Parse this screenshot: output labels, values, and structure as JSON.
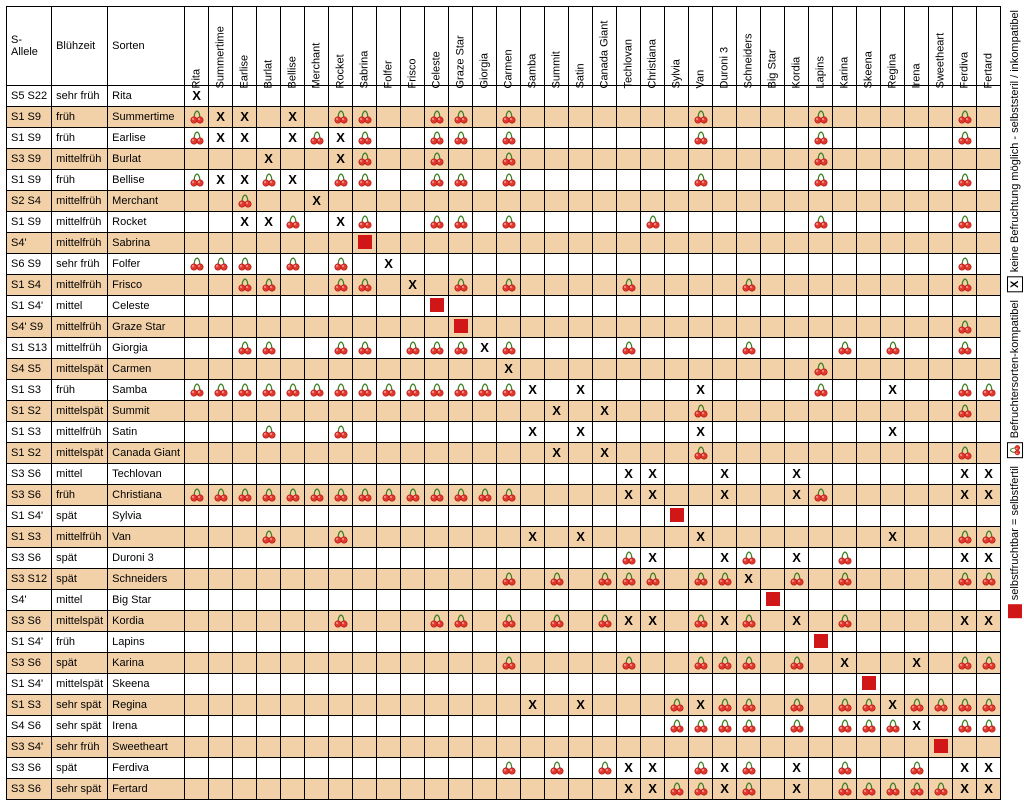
{
  "meta": {
    "background_color": "#ffffff",
    "shade_color": "#f3d1a8",
    "border_color": "#000000",
    "self_color": "#d01616",
    "cherry_color": "#e23b2e",
    "cherry_stem": "#3a7d1f",
    "font_family": "Arial",
    "font_size_pt": 8,
    "header_rotation_deg": -90
  },
  "headers": {
    "allele": "S-Allele",
    "bloom": "Blühzeit",
    "sort": "Sorten"
  },
  "columns": [
    "Rita",
    "Summertime",
    "Earlise",
    "Burlat",
    "Bellise",
    "Merchant",
    "Rocket",
    "Sabrina",
    "Folfer",
    "Frisco",
    "Celeste",
    "Graze Star",
    "Giorgia",
    "Carmen",
    "Samba",
    "Summit",
    "Satin",
    "Canada Giant",
    "Techlovan",
    "Christiana",
    "Sylvia",
    "Van",
    "Duroni 3",
    "Schneiders",
    "Big Star",
    "Kordia",
    "Lapins",
    "Karina",
    "Skeena",
    "Regina",
    "Irena",
    "Sweetheart",
    "Ferdiva",
    "Fertard"
  ],
  "rows": [
    {
      "allele": "S5 S22",
      "bloom": "sehr früh",
      "sort": "Rita",
      "shade": false,
      "cells": [
        "X",
        "",
        "",
        "",
        "",
        "",
        "",
        "",
        "",
        "",
        "",
        "",
        "",
        "",
        "",
        "",
        "",
        "",
        "",
        "",
        "",
        "",
        "",
        "",
        "",
        "",
        "",
        "",
        "",
        "",
        "",
        "",
        "",
        ""
      ]
    },
    {
      "allele": "S1 S9",
      "bloom": "früh",
      "sort": "Summertime",
      "shade": true,
      "cells": [
        "C",
        "X",
        "X",
        "",
        "X",
        "",
        "C",
        "C",
        "",
        "",
        "C",
        "C",
        "",
        "C",
        "",
        "",
        "",
        "",
        "",
        "",
        "",
        "C",
        "",
        "",
        "",
        "",
        "C",
        "",
        "",
        "",
        "",
        "",
        "C",
        ""
      ]
    },
    {
      "allele": "S1 S9",
      "bloom": "früh",
      "sort": "Earlise",
      "shade": false,
      "cells": [
        "C",
        "X",
        "X",
        "",
        "X",
        "C",
        "X",
        "C",
        "",
        "",
        "C",
        "C",
        "",
        "C",
        "",
        "",
        "",
        "",
        "",
        "",
        "",
        "C",
        "",
        "",
        "",
        "",
        "C",
        "",
        "",
        "",
        "",
        "",
        "C",
        ""
      ]
    },
    {
      "allele": "S3 S9",
      "bloom": "mittelfrüh",
      "sort": "Burlat",
      "shade": true,
      "cells": [
        "",
        "",
        "",
        "X",
        "",
        "",
        "X",
        "C",
        "",
        "",
        "C",
        "",
        "",
        "C",
        "",
        "",
        "",
        "",
        "",
        "",
        "",
        "",
        "",
        "",
        "",
        "",
        "C",
        "",
        "",
        "",
        "",
        "",
        "",
        ""
      ]
    },
    {
      "allele": "S1 S9",
      "bloom": "früh",
      "sort": "Bellise",
      "shade": false,
      "cells": [
        "C",
        "X",
        "X",
        "C",
        "X",
        "",
        "C",
        "C",
        "",
        "",
        "C",
        "C",
        "",
        "C",
        "",
        "",
        "",
        "",
        "",
        "",
        "",
        "C",
        "",
        "",
        "",
        "",
        "C",
        "",
        "",
        "",
        "",
        "",
        "C",
        ""
      ]
    },
    {
      "allele": "S2 S4",
      "bloom": "mittelfrüh",
      "sort": "Merchant",
      "shade": true,
      "cells": [
        "",
        "",
        "C",
        "",
        "",
        "X",
        "",
        "",
        "",
        "",
        "",
        "",
        "",
        "",
        "",
        "",
        "",
        "",
        "",
        "",
        "",
        "",
        "",
        "",
        "",
        "",
        "",
        "",
        "",
        "",
        "",
        "",
        "",
        ""
      ]
    },
    {
      "allele": "S1 S9",
      "bloom": "mittelfrüh",
      "sort": "Rocket",
      "shade": false,
      "cells": [
        "",
        "",
        "X",
        "X",
        "C",
        "",
        "X",
        "C",
        "",
        "",
        "C",
        "C",
        "",
        "C",
        "",
        "",
        "",
        "",
        "",
        "C",
        "",
        "",
        "",
        "",
        "",
        "",
        "C",
        "",
        "",
        "",
        "",
        "",
        "C",
        ""
      ]
    },
    {
      "allele": "S4'",
      "bloom": "mittelfrüh",
      "sort": "Sabrina",
      "shade": true,
      "cells": [
        "",
        "",
        "",
        "",
        "",
        "",
        "",
        "S",
        "",
        "",
        "",
        "",
        "",
        "",
        "",
        "",
        "",
        "",
        "",
        "",
        "",
        "",
        "",
        "",
        "",
        "",
        "",
        "",
        "",
        "",
        "",
        "",
        "",
        ""
      ]
    },
    {
      "allele": "S6 S9",
      "bloom": "sehr früh",
      "sort": "Folfer",
      "shade": false,
      "cells": [
        "C",
        "C",
        "C",
        "",
        "C",
        "",
        "C",
        "",
        "X",
        "",
        "",
        "",
        "",
        "",
        "",
        "",
        "",
        "",
        "",
        "",
        "",
        "",
        "",
        "",
        "",
        "",
        "",
        "",
        "",
        "",
        "",
        "",
        "C",
        ""
      ]
    },
    {
      "allele": "S1 S4",
      "bloom": "mittelfrüh",
      "sort": "Frisco",
      "shade": true,
      "cells": [
        "",
        "",
        "C",
        "C",
        "",
        "",
        "C",
        "C",
        "",
        "X",
        "",
        "C",
        "",
        "C",
        "",
        "",
        "",
        "",
        "C",
        "",
        "",
        "",
        "",
        "C",
        "",
        "",
        "",
        "",
        "",
        "",
        "",
        "",
        "C",
        ""
      ]
    },
    {
      "allele": "S1 S4'",
      "bloom": "mittel",
      "sort": "Celeste",
      "shade": false,
      "cells": [
        "",
        "",
        "",
        "",
        "",
        "",
        "",
        "",
        "",
        "",
        "S",
        "",
        "",
        "",
        "",
        "",
        "",
        "",
        "",
        "",
        "",
        "",
        "",
        "",
        "",
        "",
        "",
        "",
        "",
        "",
        "",
        "",
        "",
        ""
      ]
    },
    {
      "allele": "S4' S9",
      "bloom": "mittelfrüh",
      "sort": "Graze Star",
      "shade": true,
      "cells": [
        "",
        "",
        "",
        "",
        "",
        "",
        "",
        "",
        "",
        "",
        "",
        "S",
        "",
        "",
        "",
        "",
        "",
        "",
        "",
        "",
        "",
        "",
        "",
        "",
        "",
        "",
        "",
        "",
        "",
        "",
        "",
        "",
        "C",
        ""
      ]
    },
    {
      "allele": "S1 S13",
      "bloom": "mittelfrüh",
      "sort": "Giorgia",
      "shade": false,
      "cells": [
        "",
        "",
        "C",
        "C",
        "",
        "",
        "C",
        "C",
        "",
        "C",
        "C",
        "C",
        "X",
        "C",
        "",
        "",
        "",
        "",
        "C",
        "",
        "",
        "",
        "",
        "C",
        "",
        "",
        "",
        "C",
        "",
        "C",
        "",
        "",
        "C",
        ""
      ]
    },
    {
      "allele": "S4 S5",
      "bloom": "mittelspät",
      "sort": "Carmen",
      "shade": true,
      "cells": [
        "",
        "",
        "",
        "",
        "",
        "",
        "",
        "",
        "",
        "",
        "",
        "",
        "",
        "X",
        "",
        "",
        "",
        "",
        "",
        "",
        "",
        "",
        "",
        "",
        "",
        "",
        "C",
        "",
        "",
        "",
        "",
        "",
        "",
        ""
      ]
    },
    {
      "allele": "S1 S3",
      "bloom": "früh",
      "sort": "Samba",
      "shade": false,
      "cells": [
        "C",
        "C",
        "C",
        "C",
        "C",
        "C",
        "C",
        "C",
        "C",
        "C",
        "C",
        "C",
        "C",
        "C",
        "X",
        "",
        "X",
        "",
        "",
        "",
        "",
        "X",
        "",
        "",
        "",
        "",
        "C",
        "",
        "",
        "X",
        "",
        "",
        "C",
        "C"
      ]
    },
    {
      "allele": "S1 S2",
      "bloom": "mittelspät",
      "sort": "Summit",
      "shade": true,
      "cells": [
        "",
        "",
        "",
        "",
        "",
        "",
        "",
        "",
        "",
        "",
        "",
        "",
        "",
        "",
        "",
        "X",
        "",
        "X",
        "",
        "",
        "",
        "C",
        "",
        "",
        "",
        "",
        "",
        "",
        "",
        "",
        "",
        "",
        "C",
        ""
      ]
    },
    {
      "allele": "S1 S3",
      "bloom": "mittelfrüh",
      "sort": "Satin",
      "shade": false,
      "cells": [
        "",
        "",
        "",
        "C",
        "",
        "",
        "C",
        "",
        "",
        "",
        "",
        "",
        "",
        "",
        "X",
        "",
        "X",
        "",
        "",
        "",
        "",
        "X",
        "",
        "",
        "",
        "",
        "",
        "",
        "",
        "X",
        "",
        "",
        "",
        ""
      ]
    },
    {
      "allele": "S1 S2",
      "bloom": "mittelspät",
      "sort": "Canada Giant",
      "shade": true,
      "cells": [
        "",
        "",
        "",
        "",
        "",
        "",
        "",
        "",
        "",
        "",
        "",
        "",
        "",
        "",
        "",
        "X",
        "",
        "X",
        "",
        "",
        "",
        "C",
        "",
        "",
        "",
        "",
        "",
        "",
        "",
        "",
        "",
        "",
        "C",
        ""
      ]
    },
    {
      "allele": "S3 S6",
      "bloom": "mittel",
      "sort": "Techlovan",
      "shade": false,
      "cells": [
        "",
        "",
        "",
        "",
        "",
        "",
        "",
        "",
        "",
        "",
        "",
        "",
        "",
        "",
        "",
        "",
        "",
        "",
        "X",
        "X",
        "",
        "",
        "X",
        "",
        "",
        "X",
        "",
        "",
        "",
        "",
        "",
        "",
        "X",
        "X"
      ]
    },
    {
      "allele": "S3 S6",
      "bloom": "früh",
      "sort": "Christiana",
      "shade": true,
      "cells": [
        "C",
        "C",
        "C",
        "C",
        "C",
        "C",
        "C",
        "C",
        "C",
        "C",
        "C",
        "C",
        "C",
        "C",
        "",
        "",
        "",
        "",
        "X",
        "X",
        "",
        "",
        "X",
        "",
        "",
        "X",
        "C",
        "",
        "",
        "",
        "",
        "",
        "X",
        "X"
      ]
    },
    {
      "allele": "S1 S4'",
      "bloom": "spät",
      "sort": "Sylvia",
      "shade": false,
      "cells": [
        "",
        "",
        "",
        "",
        "",
        "",
        "",
        "",
        "",
        "",
        "",
        "",
        "",
        "",
        "",
        "",
        "",
        "",
        "",
        "",
        "S",
        "",
        "",
        "",
        "",
        "",
        "",
        "",
        "",
        "",
        "",
        "",
        "",
        ""
      ]
    },
    {
      "allele": "S1 S3",
      "bloom": "mittelfrüh",
      "sort": "Van",
      "shade": true,
      "cells": [
        "",
        "",
        "",
        "C",
        "",
        "",
        "C",
        "",
        "",
        "",
        "",
        "",
        "",
        "",
        "X",
        "",
        "X",
        "",
        "",
        "",
        "",
        "X",
        "",
        "",
        "",
        "",
        "",
        "",
        "",
        "X",
        "",
        "",
        "C",
        "C"
      ]
    },
    {
      "allele": "S3 S6",
      "bloom": "spät",
      "sort": "Duroni 3",
      "shade": false,
      "cells": [
        "",
        "",
        "",
        "",
        "",
        "",
        "",
        "",
        "",
        "",
        "",
        "",
        "",
        "",
        "",
        "",
        "",
        "",
        "C",
        "X",
        "",
        "",
        "X",
        "C",
        "",
        "X",
        "",
        "C",
        "",
        "",
        "",
        "",
        "X",
        "X"
      ]
    },
    {
      "allele": "S3 S12",
      "bloom": "spät",
      "sort": "Schneiders",
      "shade": true,
      "cells": [
        "",
        "",
        "",
        "",
        "",
        "",
        "",
        "",
        "",
        "",
        "",
        "",
        "",
        "C",
        "",
        "C",
        "",
        "C",
        "C",
        "C",
        "",
        "C",
        "C",
        "X",
        "",
        "C",
        "",
        "C",
        "",
        "",
        "",
        "",
        "C",
        "C"
      ]
    },
    {
      "allele": "S4'",
      "bloom": "mittel",
      "sort": "Big Star",
      "shade": false,
      "cells": [
        "",
        "",
        "",
        "",
        "",
        "",
        "",
        "",
        "",
        "",
        "",
        "",
        "",
        "",
        "",
        "",
        "",
        "",
        "",
        "",
        "",
        "",
        "",
        "",
        "S",
        "",
        "",
        "",
        "",
        "",
        "",
        "",
        "",
        ""
      ]
    },
    {
      "allele": "S3 S6",
      "bloom": "mittelspät",
      "sort": "Kordia",
      "shade": true,
      "cells": [
        "",
        "",
        "",
        "",
        "",
        "",
        "C",
        "",
        "",
        "",
        "C",
        "C",
        "",
        "C",
        "",
        "C",
        "",
        "C",
        "X",
        "X",
        "",
        "C",
        "X",
        "C",
        "",
        "X",
        "",
        "C",
        "",
        "",
        "",
        "",
        "X",
        "X"
      ]
    },
    {
      "allele": "S1 S4'",
      "bloom": "früh",
      "sort": "Lapins",
      "shade": false,
      "cells": [
        "",
        "",
        "",
        "",
        "",
        "",
        "",
        "",
        "",
        "",
        "",
        "",
        "",
        "",
        "",
        "",
        "",
        "",
        "",
        "",
        "",
        "",
        "",
        "",
        "",
        "",
        "S",
        "",
        "",
        "",
        "",
        "",
        "",
        ""
      ]
    },
    {
      "allele": "S3 S6",
      "bloom": "spät",
      "sort": "Karina",
      "shade": true,
      "cells": [
        "",
        "",
        "",
        "",
        "",
        "",
        "",
        "",
        "",
        "",
        "",
        "",
        "",
        "C",
        "",
        "",
        "",
        "",
        "C",
        "",
        "",
        "C",
        "C",
        "C",
        "",
        "C",
        "",
        "X",
        "",
        "",
        "X",
        "",
        "C",
        "C"
      ]
    },
    {
      "allele": "S1 S4'",
      "bloom": "mittelspät",
      "sort": "Skeena",
      "shade": false,
      "cells": [
        "",
        "",
        "",
        "",
        "",
        "",
        "",
        "",
        "",
        "",
        "",
        "",
        "",
        "",
        "",
        "",
        "",
        "",
        "",
        "",
        "",
        "",
        "",
        "",
        "",
        "",
        "",
        "",
        "S",
        "",
        "",
        "",
        "",
        ""
      ]
    },
    {
      "allele": "S1 S3",
      "bloom": "sehr spät",
      "sort": "Regina",
      "shade": true,
      "cells": [
        "",
        "",
        "",
        "",
        "",
        "",
        "",
        "",
        "",
        "",
        "",
        "",
        "",
        "",
        "X",
        "",
        "X",
        "",
        "",
        "",
        "C",
        "X",
        "C",
        "C",
        "",
        "C",
        "",
        "C",
        "C",
        "X",
        "C",
        "C",
        "C",
        "C"
      ]
    },
    {
      "allele": "S4 S6",
      "bloom": "sehr spät",
      "sort": "Irena",
      "shade": false,
      "cells": [
        "",
        "",
        "",
        "",
        "",
        "",
        "",
        "",
        "",
        "",
        "",
        "",
        "",
        "",
        "",
        "",
        "",
        "",
        "",
        "",
        "C",
        "C",
        "C",
        "C",
        "",
        "C",
        "",
        "C",
        "C",
        "C",
        "X",
        "",
        "C",
        "C"
      ]
    },
    {
      "allele": "S3 S4'",
      "bloom": "sehr früh",
      "sort": "Sweetheart",
      "shade": true,
      "cells": [
        "",
        "",
        "",
        "",
        "",
        "",
        "",
        "",
        "",
        "",
        "",
        "",
        "",
        "",
        "",
        "",
        "",
        "",
        "",
        "",
        "",
        "",
        "",
        "",
        "",
        "",
        "",
        "",
        "",
        "",
        "",
        "S",
        "",
        ""
      ]
    },
    {
      "allele": "S3 S6",
      "bloom": "spät",
      "sort": "Ferdiva",
      "shade": false,
      "cells": [
        "",
        "",
        "",
        "",
        "",
        "",
        "",
        "",
        "",
        "",
        "",
        "",
        "",
        "C",
        "",
        "C",
        "",
        "C",
        "X",
        "X",
        "",
        "C",
        "X",
        "C",
        "",
        "X",
        "",
        "C",
        "",
        "",
        "C",
        "",
        "X",
        "X"
      ]
    },
    {
      "allele": "S3 S6",
      "bloom": "sehr spät",
      "sort": "Fertard",
      "shade": true,
      "cells": [
        "",
        "",
        "",
        "",
        "",
        "",
        "",
        "",
        "",
        "",
        "",
        "",
        "",
        "",
        "",
        "",
        "",
        "",
        "X",
        "X",
        "C",
        "C",
        "X",
        "C",
        "",
        "X",
        "",
        "C",
        "C",
        "C",
        "C",
        "C",
        "X",
        "X"
      ]
    }
  ],
  "legend": [
    {
      "sym": "S",
      "text": "selbstfruchtbar = selbstfertil"
    },
    {
      "sym": "C",
      "text": "Befruchtersorten-kompatibel"
    },
    {
      "sym": "X",
      "text": "keine Befruchtung möglich - selbststeril / inkompatibel"
    }
  ]
}
